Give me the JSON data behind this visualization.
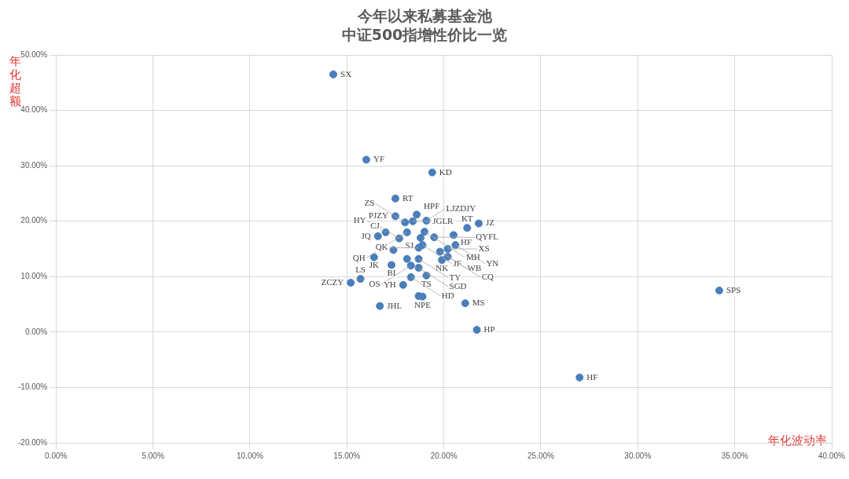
{
  "chart_data": {
    "type": "scatter",
    "title": "今年以来私募基金池",
    "subtitle": "中证500指增性价比一览",
    "xlabel": "年化波动率",
    "ylabel": "年化超额",
    "x": [
      14.3,
      16.0,
      19.4,
      17.5,
      17.5,
      18.6,
      18.0,
      19.1,
      18.4,
      21.8,
      21.2,
      20.5,
      17.0,
      16.6,
      18.1,
      19.0,
      17.7,
      18.8,
      19.5,
      18.9,
      18.7,
      19.8,
      20.6,
      20.2,
      20.2,
      19.9,
      18.7,
      16.4,
      17.4,
      18.1,
      17.3,
      18.3,
      18.7,
      19.1,
      18.3,
      15.7,
      15.2,
      17.9,
      18.7,
      18.9,
      21.1,
      16.7,
      21.7,
      27.0,
      34.2
    ],
    "series": [
      {
        "color": "#4a7ebb",
        "values": [
          46.5,
          31.1,
          28.8,
          24.1,
          20.9,
          21.2,
          19.8,
          20.1,
          20.0,
          19.6,
          18.8,
          17.5,
          18.0,
          17.3,
          18.0,
          18.1,
          16.9,
          17.0,
          17.1,
          15.7,
          15.2,
          14.5,
          15.7,
          15.0,
          13.6,
          13.0,
          13.2,
          13.5,
          14.8,
          13.2,
          12.1,
          12.0,
          11.6,
          10.2,
          9.9,
          9.6,
          8.9,
          8.5,
          6.5,
          6.4,
          5.2,
          4.7,
          0.4,
          -8.2,
          7.5
        ]
      }
    ],
    "annotations": [
      {
        "text": "SX",
        "x": 14.3,
        "y": 46.5
      },
      {
        "text": "YF",
        "x": 16.0,
        "y": 31.1
      },
      {
        "text": "KD",
        "x": 19.4,
        "y": 28.8
      },
      {
        "text": "RT",
        "x": 17.5,
        "y": 24.1
      },
      {
        "text": "PJZY",
        "x": 17.5,
        "y": 20.9
      },
      {
        "text": "HPF",
        "x": 18.6,
        "y": 21.2
      },
      {
        "text": "ZS",
        "x": 18.0,
        "y": 19.8
      },
      {
        "text": "LJZDJY",
        "x": 19.1,
        "y": 20.1
      },
      {
        "text": "JGLR",
        "x": 18.4,
        "y": 20.0
      },
      {
        "text": "JZ",
        "x": 21.8,
        "y": 19.6
      },
      {
        "text": "KT",
        "x": 21.2,
        "y": 18.8
      },
      {
        "text": "HF",
        "x": 20.5,
        "y": 17.5
      },
      {
        "text": "HY",
        "x": 17.0,
        "y": 18.0
      },
      {
        "text": "JQ",
        "x": 16.6,
        "y": 17.3
      },
      {
        "text": "QH",
        "x": 18.1,
        "y": 18.0
      },
      {
        "text": "MH",
        "x": 19.0,
        "y": 18.1
      },
      {
        "text": "CJ",
        "x": 17.7,
        "y": 16.9
      },
      {
        "text": "SJ",
        "x": 18.8,
        "y": 17.0
      },
      {
        "text": "QYFL",
        "x": 19.5,
        "y": 17.1
      },
      {
        "text": "JF",
        "x": 18.9,
        "y": 15.7
      },
      {
        "text": "QK",
        "x": 18.7,
        "y": 15.2
      },
      {
        "text": "YN",
        "x": 20.6,
        "y": 15.7
      },
      {
        "text": "XS",
        "x": 20.2,
        "y": 15.0
      },
      {
        "text": "WB",
        "x": 20.2,
        "y": 13.6
      },
      {
        "text": "NK",
        "x": 19.9,
        "y": 13.0
      },
      {
        "text": "CQ",
        "x": 19.8,
        "y": 14.5
      },
      {
        "text": "TY",
        "x": 18.7,
        "y": 13.2
      },
      {
        "text": "JK",
        "x": 16.4,
        "y": 13.5
      },
      {
        "text": "BI",
        "x": 17.3,
        "y": 12.1
      },
      {
        "text": "OS",
        "x": 18.3,
        "y": 12.0
      },
      {
        "text": "SGD",
        "x": 18.7,
        "y": 11.6
      },
      {
        "text": "TS",
        "x": 19.1,
        "y": 10.2
      },
      {
        "text": "HD",
        "x": 18.3,
        "y": 9.9
      },
      {
        "text": "LS",
        "x": 15.7,
        "y": 9.6
      },
      {
        "text": "ZCZY",
        "x": 15.2,
        "y": 8.9
      },
      {
        "text": "YH",
        "x": 17.9,
        "y": 8.5
      },
      {
        "text": "NPE",
        "x": 18.9,
        "y": 6.4
      },
      {
        "text": "MS",
        "x": 21.1,
        "y": 5.2
      },
      {
        "text": "JHL",
        "x": 16.7,
        "y": 4.7
      },
      {
        "text": "HP",
        "x": 21.7,
        "y": 0.4
      },
      {
        "text": "HF",
        "x": 27.0,
        "y": -8.2
      },
      {
        "text": "SPS",
        "x": 34.2,
        "y": 7.5
      }
    ],
    "xlim": [
      0,
      40
    ],
    "ylim": [
      -20,
      50
    ],
    "xticks": [
      {
        "value": 0,
        "label": "0.00%"
      },
      {
        "value": 5,
        "label": "5.00%"
      },
      {
        "value": 10,
        "label": "10.00%"
      },
      {
        "value": 15,
        "label": "15.00%"
      },
      {
        "value": 20,
        "label": "20.00%"
      },
      {
        "value": 25,
        "label": "25.00%"
      },
      {
        "value": 30,
        "label": "30.00%"
      },
      {
        "value": 35,
        "label": "35.00%"
      },
      {
        "value": 40,
        "label": "40.00%"
      }
    ],
    "yticks": [
      {
        "value": -20,
        "label": "-20.00%"
      },
      {
        "value": -10,
        "label": "-10.00%"
      },
      {
        "value": 0,
        "label": "0.00%"
      },
      {
        "value": 10,
        "label": "10.00%"
      },
      {
        "value": 20,
        "label": "20.00%"
      },
      {
        "value": 30,
        "label": "30.00%"
      },
      {
        "value": 40,
        "label": "40.00%"
      },
      {
        "value": 50,
        "label": "50.00%"
      }
    ],
    "grid": true,
    "legend": false,
    "marker": "circle"
  }
}
